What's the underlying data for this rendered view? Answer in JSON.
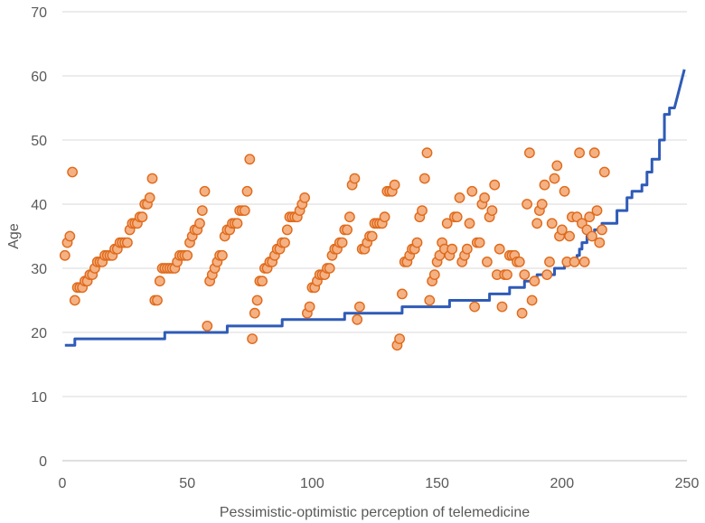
{
  "chart_data": {
    "type": "scatter",
    "xlabel": "Pessimistic-optimistic perception of telemedicine",
    "ylabel": "Age",
    "xlim": [
      0,
      250
    ],
    "ylim": [
      0,
      70
    ],
    "x_ticks": [
      "0",
      "50",
      "100",
      "150",
      "200",
      "250"
    ],
    "y_ticks": [
      "0",
      "10",
      "20",
      "30",
      "40",
      "50",
      "60",
      "70"
    ],
    "grid": "horizontal",
    "legend": "none",
    "colors": {
      "points_fill": "#F4B183",
      "points_stroke": "#E06A1B",
      "line": "#2F5BB7",
      "grid": "#D9D9D9",
      "axis": "#BFBFBF"
    },
    "series": [
      {
        "type": "scatter",
        "points": [
          [
            1,
            32
          ],
          [
            2,
            34
          ],
          [
            3,
            35
          ],
          [
            4,
            45
          ],
          [
            5,
            25
          ],
          [
            6,
            27
          ],
          [
            7,
            27
          ],
          [
            8,
            27
          ],
          [
            9,
            28
          ],
          [
            10,
            28
          ],
          [
            11,
            29
          ],
          [
            12,
            29
          ],
          [
            13,
            30
          ],
          [
            14,
            31
          ],
          [
            15,
            31
          ],
          [
            16,
            31
          ],
          [
            17,
            32
          ],
          [
            18,
            32
          ],
          [
            19,
            32
          ],
          [
            20,
            32
          ],
          [
            21,
            33
          ],
          [
            22,
            33
          ],
          [
            23,
            34
          ],
          [
            24,
            34
          ],
          [
            25,
            34
          ],
          [
            26,
            34
          ],
          [
            27,
            36
          ],
          [
            28,
            37
          ],
          [
            29,
            37
          ],
          [
            30,
            37
          ],
          [
            31,
            38
          ],
          [
            32,
            38
          ],
          [
            33,
            40
          ],
          [
            34,
            40
          ],
          [
            35,
            41
          ],
          [
            36,
            44
          ],
          [
            37,
            25
          ],
          [
            38,
            25
          ],
          [
            39,
            28
          ],
          [
            40,
            30
          ],
          [
            41,
            30
          ],
          [
            42,
            30
          ],
          [
            43,
            30
          ],
          [
            44,
            30
          ],
          [
            45,
            30
          ],
          [
            46,
            31
          ],
          [
            47,
            32
          ],
          [
            48,
            32
          ],
          [
            49,
            32
          ],
          [
            50,
            32
          ],
          [
            51,
            34
          ],
          [
            52,
            35
          ],
          [
            53,
            36
          ],
          [
            54,
            36
          ],
          [
            55,
            37
          ],
          [
            56,
            39
          ],
          [
            57,
            42
          ],
          [
            58,
            21
          ],
          [
            59,
            28
          ],
          [
            60,
            29
          ],
          [
            61,
            30
          ],
          [
            62,
            31
          ],
          [
            63,
            32
          ],
          [
            64,
            32
          ],
          [
            65,
            35
          ],
          [
            66,
            36
          ],
          [
            67,
            36
          ],
          [
            68,
            37
          ],
          [
            69,
            37
          ],
          [
            70,
            37
          ],
          [
            71,
            39
          ],
          [
            72,
            39
          ],
          [
            73,
            39
          ],
          [
            74,
            42
          ],
          [
            75,
            47
          ],
          [
            76,
            19
          ],
          [
            77,
            23
          ],
          [
            78,
            25
          ],
          [
            79,
            28
          ],
          [
            80,
            28
          ],
          [
            81,
            30
          ],
          [
            82,
            30
          ],
          [
            83,
            31
          ],
          [
            84,
            31
          ],
          [
            85,
            32
          ],
          [
            86,
            33
          ],
          [
            87,
            33
          ],
          [
            88,
            34
          ],
          [
            89,
            34
          ],
          [
            90,
            36
          ],
          [
            91,
            38
          ],
          [
            92,
            38
          ],
          [
            93,
            38
          ],
          [
            94,
            38
          ],
          [
            95,
            39
          ],
          [
            96,
            40
          ],
          [
            97,
            41
          ],
          [
            98,
            23
          ],
          [
            99,
            24
          ],
          [
            100,
            27
          ],
          [
            101,
            27
          ],
          [
            102,
            28
          ],
          [
            103,
            29
          ],
          [
            104,
            29
          ],
          [
            105,
            29
          ],
          [
            106,
            30
          ],
          [
            107,
            30
          ],
          [
            108,
            32
          ],
          [
            109,
            33
          ],
          [
            110,
            33
          ],
          [
            111,
            34
          ],
          [
            112,
            34
          ],
          [
            113,
            36
          ],
          [
            114,
            36
          ],
          [
            115,
            38
          ],
          [
            116,
            43
          ],
          [
            117,
            44
          ],
          [
            118,
            22
          ],
          [
            119,
            24
          ],
          [
            120,
            33
          ],
          [
            121,
            33
          ],
          [
            122,
            34
          ],
          [
            123,
            35
          ],
          [
            124,
            35
          ],
          [
            125,
            37
          ],
          [
            126,
            37
          ],
          [
            127,
            37
          ],
          [
            128,
            37
          ],
          [
            129,
            38
          ],
          [
            130,
            42
          ],
          [
            131,
            42
          ],
          [
            132,
            42
          ],
          [
            133,
            43
          ],
          [
            134,
            18
          ],
          [
            135,
            19
          ],
          [
            136,
            26
          ],
          [
            137,
            31
          ],
          [
            138,
            31
          ],
          [
            139,
            32
          ],
          [
            140,
            33
          ],
          [
            141,
            33
          ],
          [
            142,
            34
          ],
          [
            143,
            38
          ],
          [
            144,
            39
          ],
          [
            145,
            44
          ],
          [
            146,
            48
          ],
          [
            147,
            25
          ],
          [
            148,
            28
          ],
          [
            149,
            29
          ],
          [
            150,
            31
          ],
          [
            151,
            32
          ],
          [
            152,
            34
          ],
          [
            153,
            33
          ],
          [
            154,
            37
          ],
          [
            155,
            32
          ],
          [
            156,
            33
          ],
          [
            157,
            38
          ],
          [
            158,
            38
          ],
          [
            159,
            41
          ],
          [
            160,
            31
          ],
          [
            161,
            32
          ],
          [
            162,
            33
          ],
          [
            163,
            37
          ],
          [
            164,
            42
          ],
          [
            165,
            24
          ],
          [
            166,
            34
          ],
          [
            167,
            34
          ],
          [
            168,
            40
          ],
          [
            169,
            41
          ],
          [
            170,
            31
          ],
          [
            171,
            38
          ],
          [
            172,
            39
          ],
          [
            173,
            43
          ],
          [
            174,
            29
          ],
          [
            175,
            33
          ],
          [
            176,
            24
          ],
          [
            177,
            29
          ],
          [
            178,
            29
          ],
          [
            179,
            32
          ],
          [
            180,
            32
          ],
          [
            181,
            32
          ],
          [
            182,
            31
          ],
          [
            183,
            31
          ],
          [
            184,
            23
          ],
          [
            185,
            29
          ],
          [
            186,
            40
          ],
          [
            187,
            48
          ],
          [
            188,
            25
          ],
          [
            189,
            28
          ],
          [
            190,
            37
          ],
          [
            191,
            39
          ],
          [
            192,
            40
          ],
          [
            193,
            43
          ],
          [
            194,
            29
          ],
          [
            195,
            31
          ],
          [
            196,
            37
          ],
          [
            197,
            44
          ],
          [
            198,
            46
          ],
          [
            199,
            35
          ],
          [
            200,
            36
          ],
          [
            201,
            42
          ],
          [
            202,
            31
          ],
          [
            203,
            35
          ],
          [
            204,
            38
          ],
          [
            205,
            31
          ],
          [
            206,
            38
          ],
          [
            207,
            48
          ],
          [
            208,
            37
          ],
          [
            209,
            31
          ],
          [
            210,
            36
          ],
          [
            211,
            38
          ],
          [
            212,
            35
          ],
          [
            213,
            48
          ],
          [
            214,
            39
          ],
          [
            215,
            34
          ],
          [
            216,
            36
          ],
          [
            217,
            45
          ]
        ]
      },
      {
        "type": "line",
        "points": [
          [
            1,
            18
          ],
          [
            5,
            18
          ],
          [
            5,
            19
          ],
          [
            41,
            19
          ],
          [
            41,
            20
          ],
          [
            66,
            20
          ],
          [
            66,
            21
          ],
          [
            88,
            21
          ],
          [
            88,
            22
          ],
          [
            113,
            22
          ],
          [
            113,
            23
          ],
          [
            136,
            23
          ],
          [
            136,
            24
          ],
          [
            155,
            24
          ],
          [
            155,
            25
          ],
          [
            171,
            25
          ],
          [
            171,
            26
          ],
          [
            179,
            26
          ],
          [
            179,
            27
          ],
          [
            185,
            27
          ],
          [
            185,
            28
          ],
          [
            190,
            28
          ],
          [
            190,
            29
          ],
          [
            197,
            29
          ],
          [
            197,
            30
          ],
          [
            201,
            30
          ],
          [
            201,
            31
          ],
          [
            206,
            31
          ],
          [
            206,
            32
          ],
          [
            207,
            32
          ],
          [
            207,
            33
          ],
          [
            208,
            33
          ],
          [
            208,
            34
          ],
          [
            210,
            34
          ],
          [
            210,
            35
          ],
          [
            213,
            35
          ],
          [
            213,
            36
          ],
          [
            216,
            36
          ],
          [
            216,
            37
          ],
          [
            222,
            37
          ],
          [
            222,
            39
          ],
          [
            226,
            39
          ],
          [
            226,
            41
          ],
          [
            228,
            41
          ],
          [
            228,
            42
          ],
          [
            232,
            42
          ],
          [
            232,
            43
          ],
          [
            234,
            43
          ],
          [
            234,
            45
          ],
          [
            236,
            45
          ],
          [
            236,
            47
          ],
          [
            239,
            47
          ],
          [
            239,
            50
          ],
          [
            241,
            50
          ],
          [
            241,
            54
          ],
          [
            243,
            54
          ],
          [
            243,
            55
          ],
          [
            245,
            55
          ],
          [
            247,
            58
          ],
          [
            249,
            61
          ]
        ]
      }
    ]
  }
}
